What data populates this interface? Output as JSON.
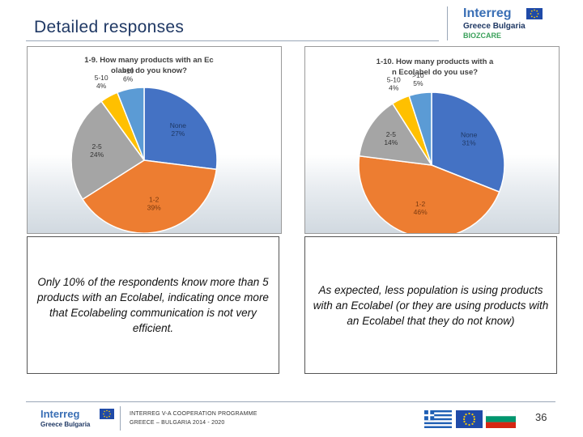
{
  "slide": {
    "title": "Detailed responses",
    "page_number": "36"
  },
  "header_logo": {
    "word": "Interreg",
    "subtitle": "Greece Bulgaria",
    "project": "BIOZCARE"
  },
  "footer": {
    "logo_word": "Interreg",
    "logo_subtitle": "Greece Bulgaria",
    "programme_line1": "INTERREG V-A COOPERATION PROGRAMME",
    "programme_line2": "GREECE – BULGARIA 2014 - 2020"
  },
  "colors": {
    "none": "#4472c4",
    "one_two": "#ed7d31",
    "two_five": "#a5a5a5",
    "five_ten": "#ffc000",
    "over_ten": "#5b9bd5",
    "title": "#1f3864"
  },
  "chart_data": [
    {
      "type": "pie",
      "title": "1-9. How many products with an Ecolabel do you know?",
      "series": [
        {
          "name": "None",
          "value": 27,
          "label": "27%"
        },
        {
          "name": "1-2",
          "value": 39,
          "label": "39%"
        },
        {
          "name": "2-5",
          "value": 24,
          "label": "24%"
        },
        {
          "name": "5-10",
          "value": 4,
          "label": "4%"
        },
        {
          "name": ">10",
          "value": 6,
          "label": "6%"
        }
      ]
    },
    {
      "type": "pie",
      "title": "1-10. How many products with an Ecolabel do you use?",
      "series": [
        {
          "name": "None",
          "value": 31,
          "label": "31%"
        },
        {
          "name": "1-2",
          "value": 46,
          "label": "46%"
        },
        {
          "name": "2-5",
          "value": 14,
          "label": "14%"
        },
        {
          "name": "5-10",
          "value": 4,
          "label": "4%"
        },
        {
          "name": ">10",
          "value": 5,
          "label": "5%"
        }
      ]
    }
  ],
  "captions": {
    "left": "Only 10% of the respondents know more than 5 products with an Ecolabel, indicating once more that Ecolabeling communication is not very efficient.",
    "right": "As expected, less population is using products with an Ecolabel (or they are using products with an Ecolabel that they do not know)"
  }
}
